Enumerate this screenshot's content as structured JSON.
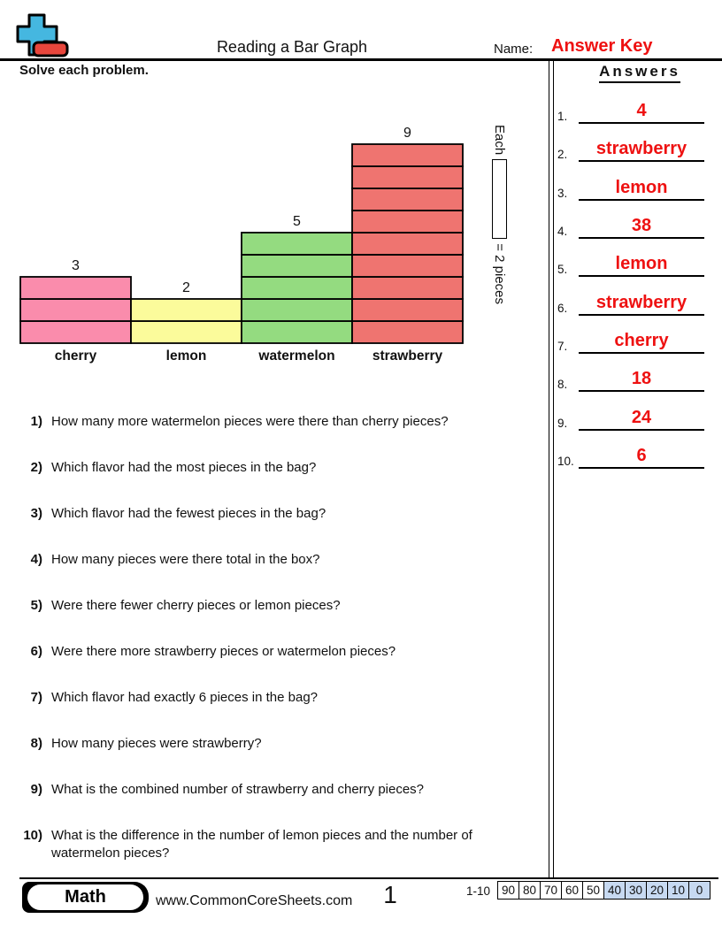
{
  "header": {
    "title": "Reading a Bar Graph",
    "name_label": "Name:",
    "name_value": "Answer Key",
    "instruction": "Solve each problem."
  },
  "chart_data": {
    "type": "bar",
    "title": "",
    "xlabel": "",
    "ylabel": "",
    "categories": [
      "cherry",
      "lemon",
      "watermelon",
      "strawberry"
    ],
    "values": [
      3,
      2,
      5,
      9
    ],
    "value_labels": [
      "3",
      "2",
      "5",
      "9"
    ],
    "bar_colors": [
      "#FA8CAC",
      "#FBFB9B",
      "#94DB80",
      "#EF7470"
    ],
    "ylim": [
      0,
      9
    ],
    "grid": false,
    "style": "stacked-unit-boxes",
    "legend_position": "right-rotated-90",
    "unit_legend": {
      "prefix": "Each",
      "suffix": "= 2 pieces",
      "pieces_per_box": 2
    }
  },
  "answers": {
    "heading": "Answers",
    "items": [
      {
        "num": "1.",
        "value": "4"
      },
      {
        "num": "2.",
        "value": "strawberry"
      },
      {
        "num": "3.",
        "value": "lemon"
      },
      {
        "num": "4.",
        "value": "38"
      },
      {
        "num": "5.",
        "value": "lemon"
      },
      {
        "num": "6.",
        "value": "strawberry"
      },
      {
        "num": "7.",
        "value": "cherry"
      },
      {
        "num": "8.",
        "value": "18"
      },
      {
        "num": "9.",
        "value": "24"
      },
      {
        "num": "10.",
        "value": "6"
      }
    ]
  },
  "questions": [
    {
      "num": "1)",
      "text": "How many more watermelon pieces were there than cherry pieces?"
    },
    {
      "num": "2)",
      "text": "Which flavor had the most pieces in the bag?"
    },
    {
      "num": "3)",
      "text": "Which flavor had the fewest pieces in the bag?"
    },
    {
      "num": "4)",
      "text": "How many pieces were there total in the box?"
    },
    {
      "num": "5)",
      "text": "Were there fewer cherry pieces or lemon pieces?"
    },
    {
      "num": "6)",
      "text": "Were there more strawberry pieces or watermelon pieces?"
    },
    {
      "num": "7)",
      "text": "Which flavor had exactly 6 pieces in the bag?"
    },
    {
      "num": "8)",
      "text": "How many pieces were strawberry?"
    },
    {
      "num": "9)",
      "text": "What is the combined number of strawberry and cherry pieces?"
    },
    {
      "num": "10)",
      "text": "What is the difference in the number of lemon pieces and the number of watermelon pieces?"
    }
  ],
  "footer": {
    "subject_badge": "Math",
    "website": "www.CommonCoreSheets.com",
    "page_number": "1",
    "score_row_label": "1-10",
    "score_cells": [
      {
        "label": "90",
        "highlighted": false
      },
      {
        "label": "80",
        "highlighted": false
      },
      {
        "label": "70",
        "highlighted": false
      },
      {
        "label": "60",
        "highlighted": false
      },
      {
        "label": "50",
        "highlighted": false
      },
      {
        "label": "40",
        "highlighted": true
      },
      {
        "label": "30",
        "highlighted": true
      },
      {
        "label": "20",
        "highlighted": true
      },
      {
        "label": "10",
        "highlighted": true
      },
      {
        "label": "0",
        "highlighted": true
      }
    ]
  },
  "colors": {
    "answer_red": "#EE1111",
    "score_highlight": "#C7D9F1",
    "logo_blue": "#45B7E0",
    "logo_red": "#E8463C"
  }
}
